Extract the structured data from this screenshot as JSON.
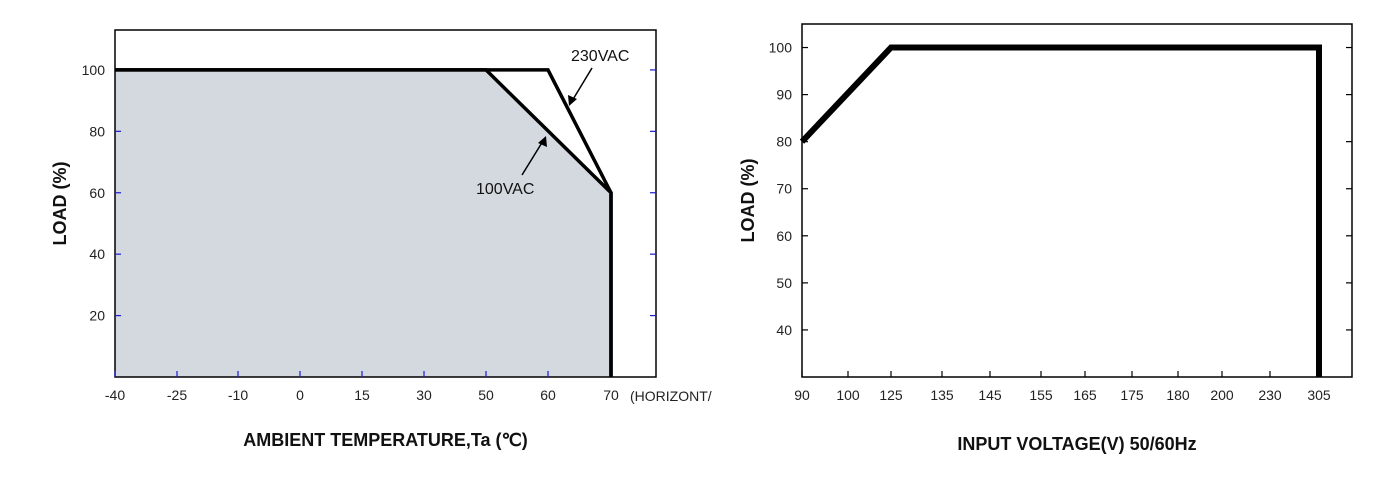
{
  "chart_data": [
    {
      "type": "area",
      "xlabel": "AMBIENT TEMPERATURE,Ta (℃)",
      "xlabel_suffix": "(HORIZONT/",
      "ylabel": "LOAD (%)",
      "x_ticks": [
        "-40",
        "-25",
        "-10",
        "0",
        "15",
        "30",
        "50",
        "60",
        "70"
      ],
      "y_ticks": [
        "20",
        "40",
        "60",
        "80",
        "100"
      ],
      "ylim": [
        0,
        113
      ],
      "grid": false,
      "series": [
        {
          "name": "230VAC",
          "points": [
            {
              "x": "-40",
              "y": 100
            },
            {
              "x": "60",
              "y": 100
            },
            {
              "x": "70",
              "y": 60
            },
            {
              "x": "70",
              "y": 0
            }
          ]
        },
        {
          "name": "100VAC",
          "points": [
            {
              "x": "-40",
              "y": 100
            },
            {
              "x": "50",
              "y": 100
            },
            {
              "x": "70",
              "y": 60
            },
            {
              "x": "70",
              "y": 0
            }
          ]
        }
      ],
      "colors": {
        "fill": "#d4d9e0",
        "line": "#000000",
        "tick_marks": "#1a1ad8"
      }
    },
    {
      "type": "line",
      "xlabel": "INPUT VOLTAGE(V) 50/60Hz",
      "ylabel": "LOAD (%)",
      "x_ticks": [
        "90",
        "100",
        "125",
        "135",
        "145",
        "155",
        "165",
        "175",
        "180",
        "200",
        "230",
        "305"
      ],
      "y_ticks": [
        "40",
        "50",
        "60",
        "70",
        "80",
        "90",
        "100"
      ],
      "ylim": [
        30,
        105
      ],
      "grid": false,
      "series": [
        {
          "points": [
            {
              "x": "90",
              "y": 80
            },
            {
              "x": "125",
              "y": 100
            },
            {
              "x": "305",
              "y": 100
            },
            {
              "x": "305",
              "y": 30
            }
          ]
        }
      ],
      "colors": {
        "line": "#000000"
      }
    }
  ]
}
